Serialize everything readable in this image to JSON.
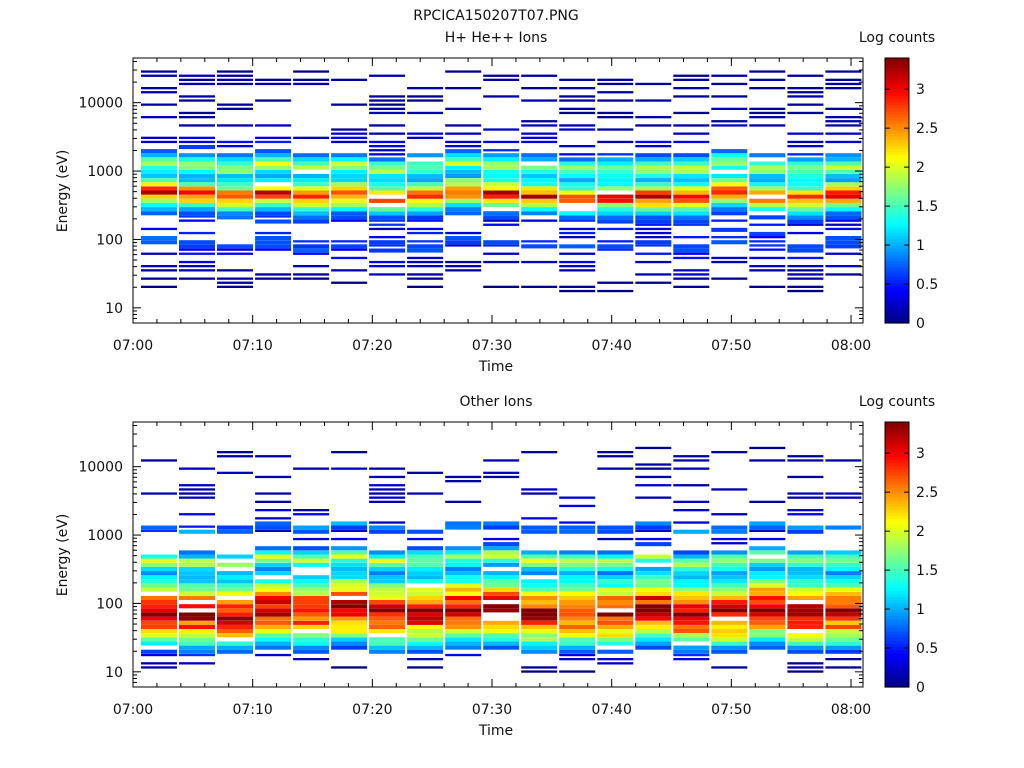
{
  "figure_title": "RPCICA150207T07.PNG",
  "chart_data": [
    {
      "type": "heatmap",
      "title": "H+ He++ Ions",
      "xlabel": "Time",
      "ylabel": "Energy (eV)",
      "x_ticks": [
        "07:00",
        "07:10",
        "07:20",
        "07:30",
        "07:40",
        "07:50",
        "08:00"
      ],
      "x_range": [
        "07:00",
        "08:01"
      ],
      "y_scale": "log",
      "y_ticks": [
        "10",
        "100",
        "1000",
        "10000"
      ],
      "y_range": [
        6,
        45000
      ],
      "colorbar": {
        "label": "Log counts",
        "range": [
          0,
          3.4
        ],
        "ticks": [
          "0",
          "0.5",
          "1",
          "1.5",
          "2",
          "2.5",
          "3"
        ]
      },
      "columns": 19,
      "profile": [
        {
          "energy": 18,
          "value": 0.0
        },
        {
          "energy": 25,
          "value": 0.1
        },
        {
          "energy": 40,
          "value": 0.2
        },
        {
          "energy": 60,
          "value": 0.4
        },
        {
          "energy": 85,
          "value": 0.7
        },
        {
          "energy": 110,
          "value": 0.5
        },
        {
          "energy": 160,
          "value": 0.4
        },
        {
          "energy": 240,
          "value": 0.8
        },
        {
          "energy": 320,
          "value": 1.6
        },
        {
          "energy": 400,
          "value": 2.6
        },
        {
          "energy": 460,
          "value": 3.0
        },
        {
          "energy": 520,
          "value": 2.5
        },
        {
          "energy": 600,
          "value": 1.9
        },
        {
          "energy": 750,
          "value": 1.1
        },
        {
          "energy": 900,
          "value": 1.2
        },
        {
          "energy": 1050,
          "value": 1.6
        },
        {
          "energy": 1250,
          "value": 1.9
        },
        {
          "energy": 1500,
          "value": 1.2
        },
        {
          "energy": 2000,
          "value": 0.5
        },
        {
          "energy": 4000,
          "value": 0.2
        },
        {
          "energy": 10000,
          "value": 0.1
        },
        {
          "energy": 30000,
          "value": 0.1
        }
      ],
      "sparse_high_energy": true
    },
    {
      "type": "heatmap",
      "title": "Other Ions",
      "xlabel": "Time",
      "ylabel": "Energy (eV)",
      "x_ticks": [
        "07:00",
        "07:10",
        "07:20",
        "07:30",
        "07:40",
        "07:50",
        "08:00"
      ],
      "x_range": [
        "07:00",
        "08:01"
      ],
      "y_scale": "log",
      "y_ticks": [
        "10",
        "100",
        "1000",
        "10000"
      ],
      "y_range": [
        6,
        45000
      ],
      "colorbar": {
        "label": "Log counts",
        "range": [
          0,
          3.4
        ],
        "ticks": [
          "0",
          "0.5",
          "1",
          "1.5",
          "2",
          "2.5",
          "3"
        ]
      },
      "columns": 19,
      "profile": [
        {
          "energy": 10,
          "value": 0.0
        },
        {
          "energy": 15,
          "value": 0.2
        },
        {
          "energy": 20,
          "value": 0.7
        },
        {
          "energy": 25,
          "value": 1.1
        },
        {
          "energy": 30,
          "value": 1.6
        },
        {
          "energy": 38,
          "value": 2.1
        },
        {
          "energy": 50,
          "value": 2.6
        },
        {
          "energy": 65,
          "value": 3.0
        },
        {
          "energy": 80,
          "value": 3.2
        },
        {
          "energy": 100,
          "value": 2.9
        },
        {
          "energy": 130,
          "value": 2.3
        },
        {
          "energy": 170,
          "value": 1.8
        },
        {
          "energy": 220,
          "value": 1.3
        },
        {
          "energy": 300,
          "value": 0.9
        },
        {
          "energy": 380,
          "value": 1.5
        },
        {
          "energy": 450,
          "value": 2.0
        },
        {
          "energy": 550,
          "value": 1.1
        },
        {
          "energy": 700,
          "value": 0.4
        },
        {
          "energy": 1000,
          "value": 0.3
        },
        {
          "energy": 1300,
          "value": 1.0
        },
        {
          "energy": 1500,
          "value": 0.3
        },
        {
          "energy": 18000,
          "value": 0.1
        }
      ],
      "sparse_high_energy": false
    }
  ]
}
